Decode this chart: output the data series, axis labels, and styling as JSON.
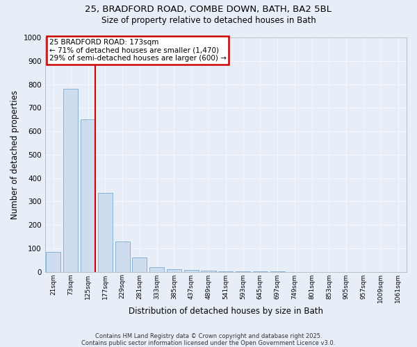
{
  "title_line1": "25, BRADFORD ROAD, COMBE DOWN, BATH, BA2 5BL",
  "title_line2": "Size of property relative to detached houses in Bath",
  "xlabel": "Distribution of detached houses by size in Bath",
  "ylabel": "Number of detached properties",
  "bins": [
    "21sqm",
    "73sqm",
    "125sqm",
    "177sqm",
    "229sqm",
    "281sqm",
    "333sqm",
    "385sqm",
    "437sqm",
    "489sqm",
    "541sqm",
    "593sqm",
    "645sqm",
    "697sqm",
    "749sqm",
    "801sqm",
    "853sqm",
    "905sqm",
    "957sqm",
    "1009sqm",
    "1061sqm"
  ],
  "values": [
    85,
    780,
    650,
    335,
    130,
    60,
    20,
    10,
    8,
    5,
    3,
    2,
    1,
    1,
    0,
    0,
    0,
    0,
    0,
    0,
    0
  ],
  "bar_color": "#cddcee",
  "bar_edge_color": "#7aaad0",
  "vline_color": "#cc0000",
  "vline_bar_index": 2,
  "background_color": "#e8eef8",
  "grid_color": "#f5f7fc",
  "annotation_title": "25 BRADFORD ROAD: 173sqm",
  "annotation_line1": "← 71% of detached houses are smaller (1,470)",
  "annotation_line2": "29% of semi-detached houses are larger (600) →",
  "annotation_box_edge": "#cc0000",
  "footer_line1": "Contains HM Land Registry data © Crown copyright and database right 2025.",
  "footer_line2": "Contains public sector information licensed under the Open Government Licence v3.0.",
  "ylim": [
    0,
    1000
  ],
  "yticks": [
    0,
    100,
    200,
    300,
    400,
    500,
    600,
    700,
    800,
    900,
    1000
  ]
}
